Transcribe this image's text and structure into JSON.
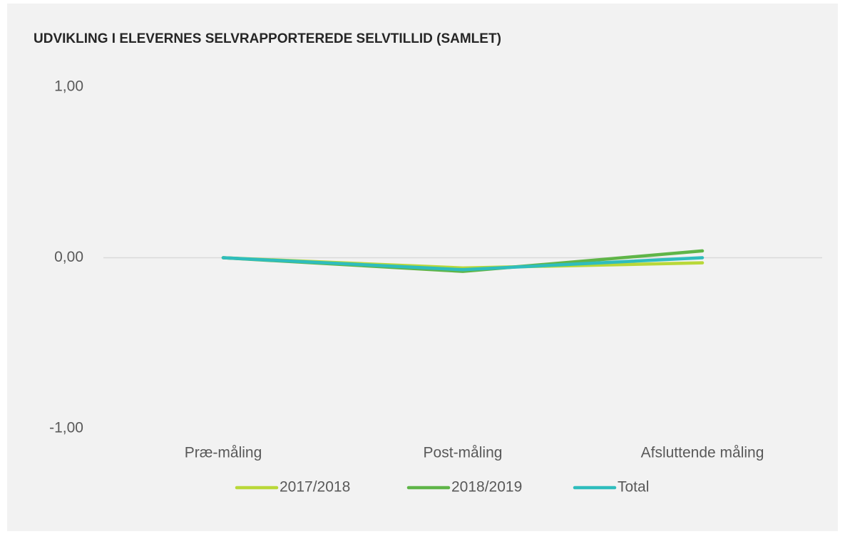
{
  "chart_data": {
    "type": "line",
    "title": "UDVIKLING I ELEVERNES SELVRAPPORTEREDE SELVTILLID (SAMLET)",
    "categories": [
      "Præ-måling",
      "Post-måling",
      "Afsluttende måling"
    ],
    "series": [
      {
        "name": "2017/2018",
        "color": "#b9d839",
        "values": [
          0,
          -0.06,
          -0.03
        ]
      },
      {
        "name": "2018/2019",
        "color": "#5fb548",
        "values": [
          0,
          -0.08,
          0.04
        ]
      },
      {
        "name": "Total",
        "color": "#2fbdbd",
        "values": [
          0,
          -0.07,
          0
        ]
      }
    ],
    "ylim": [
      -1,
      1
    ],
    "yticks": [
      {
        "value": -1,
        "label": "-1,00"
      },
      {
        "value": 0,
        "label": "0,00"
      },
      {
        "value": 1,
        "label": "1,00"
      }
    ],
    "legend": "bottom"
  }
}
